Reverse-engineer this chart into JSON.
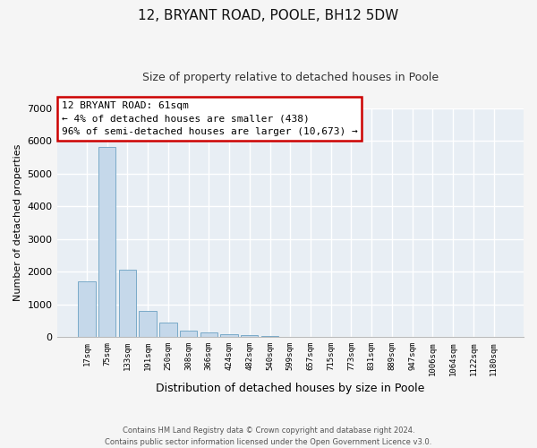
{
  "title": "12, BRYANT ROAD, POOLE, BH12 5DW",
  "subtitle": "Size of property relative to detached houses in Poole",
  "xlabel": "Distribution of detached houses by size in Poole",
  "ylabel": "Number of detached properties",
  "categories": [
    "17sqm",
    "75sqm",
    "133sqm",
    "191sqm",
    "250sqm",
    "308sqm",
    "366sqm",
    "424sqm",
    "482sqm",
    "540sqm",
    "599sqm",
    "657sqm",
    "715sqm",
    "773sqm",
    "831sqm",
    "889sqm",
    "947sqm",
    "1006sqm",
    "1064sqm",
    "1122sqm",
    "1180sqm"
  ],
  "values": [
    1700,
    5800,
    2050,
    800,
    450,
    200,
    150,
    100,
    60,
    30,
    15,
    8,
    5,
    3,
    2,
    1,
    1,
    1,
    0,
    0,
    0
  ],
  "bar_color": "#c5d8ea",
  "bar_edge_color": "#7aaac8",
  "ylim": [
    0,
    7000
  ],
  "yticks": [
    0,
    1000,
    2000,
    3000,
    4000,
    5000,
    6000,
    7000
  ],
  "annotation_line1": "12 BRYANT ROAD: 61sqm",
  "annotation_line2": "← 4% of detached houses are smaller (438)",
  "annotation_line3": "96% of semi-detached houses are larger (10,673) →",
  "annotation_box_color": "#ffffff",
  "annotation_box_edge_color": "#cc0000",
  "footer_line1": "Contains HM Land Registry data © Crown copyright and database right 2024.",
  "footer_line2": "Contains public sector information licensed under the Open Government Licence v3.0.",
  "bg_color": "#e8eef4",
  "fig_bg_color": "#f5f5f5",
  "grid_color": "#ffffff"
}
